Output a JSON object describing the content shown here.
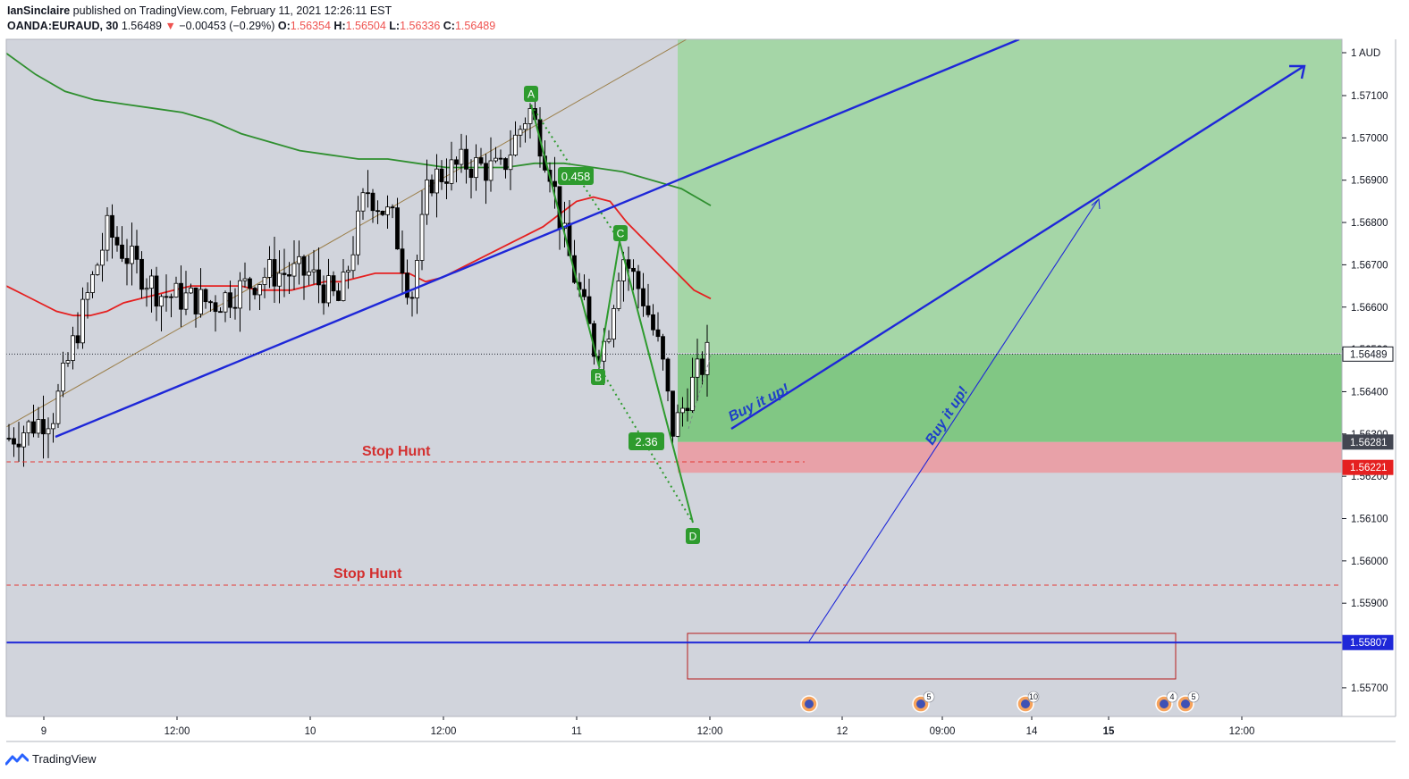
{
  "header": {
    "author": "IanSinclaire",
    "published_text": "published on TradingView.com, February 11, 2021 12:26:11 EST",
    "symbol": "OANDA:EURAUD, 30",
    "last": "1.56489",
    "change": "−0.00453 (−0.29%)",
    "open_label": "O:",
    "open": "1.56354",
    "high_label": "H:",
    "high": "1.56504",
    "low_label": "L:",
    "low": "1.56336",
    "close_label": "C:",
    "close": "1.56489"
  },
  "footer": {
    "brand": "TradingView"
  },
  "colors": {
    "plot_bg": "#d1d4dc",
    "profit_zone": "#a5d6a7",
    "profit_strong": "#81c784",
    "stop_zone": "#e8a1a8",
    "pattern_green": "#2e9b2e",
    "blue_line": "#1e27d8",
    "ma_red": "#e52020",
    "ma_green": "#2f8f2f",
    "channel_brown": "#9b7f4a"
  },
  "chart_data": {
    "type": "candlestick",
    "price_axis": {
      "unit_label": "1 AUD",
      "ticks": [
        "1.57100",
        "1.57000",
        "1.56900",
        "1.56800",
        "1.56700",
        "1.56600",
        "1.56500",
        "1.56400",
        "1.56300",
        "1.56200",
        "1.56100",
        "1.56000",
        "1.55900",
        "1.55700"
      ],
      "range": [
        1.5562,
        1.5721
      ]
    },
    "price_tags": [
      {
        "value": "1.56489",
        "style": "current"
      },
      {
        "value": "1.56281",
        "style": "dark"
      },
      {
        "value": "1.56221",
        "style": "red"
      },
      {
        "value": "1.55807",
        "style": "blue"
      }
    ],
    "time_axis": {
      "ticks": [
        "9",
        "12:00",
        "10",
        "12:00",
        "11",
        "12:00",
        "12",
        "09:00",
        "14",
        "15",
        "12:00"
      ],
      "bold": [
        "15"
      ]
    },
    "pattern_points": [
      {
        "label": "A",
        "price": 1.5711
      },
      {
        "label": "B",
        "price": 1.5649
      },
      {
        "label": "C",
        "price": 1.5675
      },
      {
        "label": "D",
        "price": 1.561
      }
    ],
    "ratios": [
      "0.458",
      "2.36"
    ],
    "annotations": [
      "Buy it up!",
      "Buy it up!",
      "Stop Hunt",
      "Stop Hunt"
    ],
    "levels": {
      "entry": 1.56281,
      "stop": 1.56221,
      "support": 1.55807,
      "stop_hunt_1": 1.5623,
      "stop_hunt_2": 1.5594,
      "current": 1.56489
    },
    "event_badges": [
      "",
      "5",
      "10",
      "4",
      "5"
    ],
    "ma_fast": [
      1.5665,
      1.5663,
      1.5661,
      1.5659,
      1.5658,
      1.5658,
      1.5659,
      1.5661,
      1.5662,
      1.5663,
      1.5664,
      1.5665,
      1.5665,
      1.5665,
      1.5665,
      1.5664,
      1.5664,
      1.5664,
      1.5665,
      1.5666,
      1.5666,
      1.5667,
      1.5668,
      1.5668,
      1.5668,
      1.5666,
      1.5667,
      1.5669,
      1.5671,
      1.5673,
      1.5675,
      1.5677,
      1.5679,
      1.5682,
      1.5685,
      1.5686,
      1.5685,
      1.568,
      1.5676,
      1.5672,
      1.5668,
      1.5664,
      1.5662
    ],
    "ma_slow": [
      1.572,
      1.5715,
      1.5711,
      1.5709,
      1.5708,
      1.5707,
      1.5706,
      1.5704,
      1.5701,
      1.5699,
      1.5697,
      1.5696,
      1.5695,
      1.5695,
      1.5694,
      1.5693,
      1.5693,
      1.5693,
      1.5694,
      1.5694,
      1.5693,
      1.5692,
      1.569,
      1.5688,
      1.5684
    ]
  }
}
